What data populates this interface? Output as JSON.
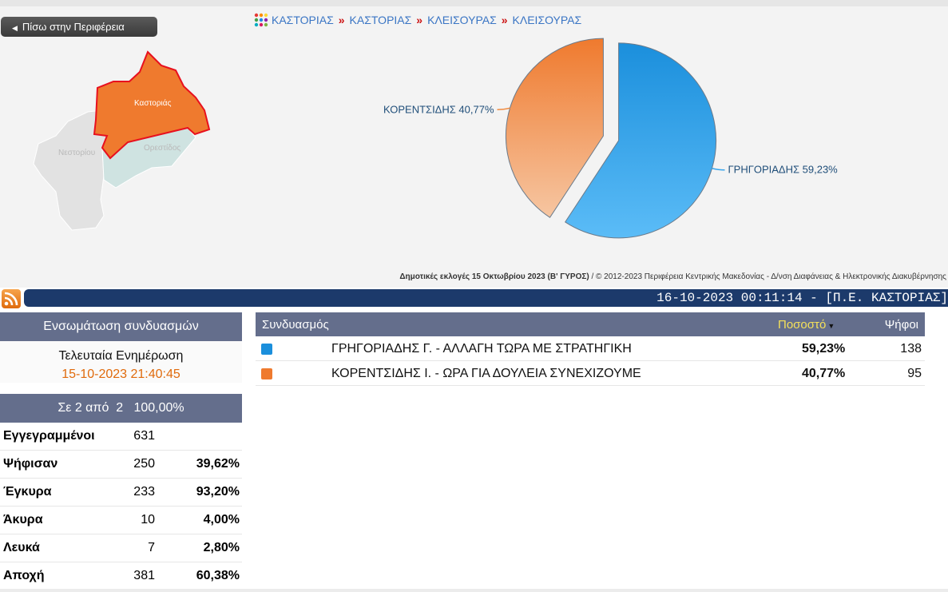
{
  "nav": {
    "back_label": "Πίσω στην Περιφέρεια",
    "breadcrumb": [
      "ΚΑΣΤΟΡΙΑΣ",
      "ΚΑΣΤΟΡΙΑΣ",
      "ΚΛΕΙΣΟΥΡΑΣ",
      "ΚΛΕΙΣΟΥΡΑΣ"
    ],
    "separator": "»"
  },
  "map": {
    "regions": [
      "Καστοριάς",
      "Νεστορίου",
      "Ορεστίδος"
    ],
    "highlight_color": "#ef7a2e"
  },
  "chart_data": {
    "type": "pie",
    "slices": [
      {
        "label": "ΓΡΗΓΟΡΙΑΔΗΣ",
        "value": 59.23,
        "display": "ΓΡΗΓΟΡΙΑΔΗΣ 59,23%",
        "color": "#35a4ec"
      },
      {
        "label": "ΚΟΡΕΝΤΣΙΔΗΣ",
        "value": 40.77,
        "display": "ΚΟΡΕΝΤΣΙΔΗΣ 40,77%",
        "color": "#f08a3e"
      }
    ]
  },
  "footer": {
    "election": "Δημοτικές εκλογές 15 Οκτωβρίου 2023 (Β' ΓΥΡΟΣ)",
    "credit": " / © 2012-2023 Περιφέρεια Κεντρικής Μακεδονίας - Δ/νση Διαφάνειας & Ηλεκτρονικής Διακυβέρνησης"
  },
  "ticker": "16-10-2023 00:11:14 - [Π.Ε. ΚΑΣΤΟΡΙΑΣ]",
  "left_panel": {
    "title": "Ενσωμάτωση συνδυασμών",
    "last_update_label": "Τελευταία Ενημέρωση",
    "last_update_value": "15-10-2023 21:40:45",
    "progress": "Σε 2 από  2   100,00%",
    "stats": [
      {
        "label": "Εγγεγραμμένοι",
        "count": "631",
        "pct": ""
      },
      {
        "label": "Ψήφισαν",
        "count": "250",
        "pct": "39,62%"
      },
      {
        "label": "Έγκυρα",
        "count": "233",
        "pct": "93,20%"
      },
      {
        "label": "Άκυρα",
        "count": "10",
        "pct": "4,00%"
      },
      {
        "label": "Λευκά",
        "count": "7",
        "pct": "2,80%"
      },
      {
        "label": "Αποχή",
        "count": "381",
        "pct": "60,38%"
      }
    ]
  },
  "results": {
    "headers": {
      "party": "Συνδυασμός",
      "percent": "Ποσοστό",
      "votes": "Ψήφοι"
    },
    "rows": [
      {
        "name": "ΓΡΗΓΟΡΙΑΔΗΣ Γ. - ΑΛΛΑΓΗ ΤΩΡΑ ΜΕ ΣΤΡΑΤΗΓΙΚΗ",
        "pct": "59,23%",
        "votes": "138",
        "color": "#1b8fdc"
      },
      {
        "name": "ΚΟΡΕΝΤΣΙΔΗΣ Ι. - ΩΡΑ ΓΙΑ ΔΟΥΛΕΙΑ ΣΥΝΕΧΙΖΟΥΜΕ",
        "pct": "40,77%",
        "votes": "95",
        "color": "#ef7a2e"
      }
    ]
  }
}
